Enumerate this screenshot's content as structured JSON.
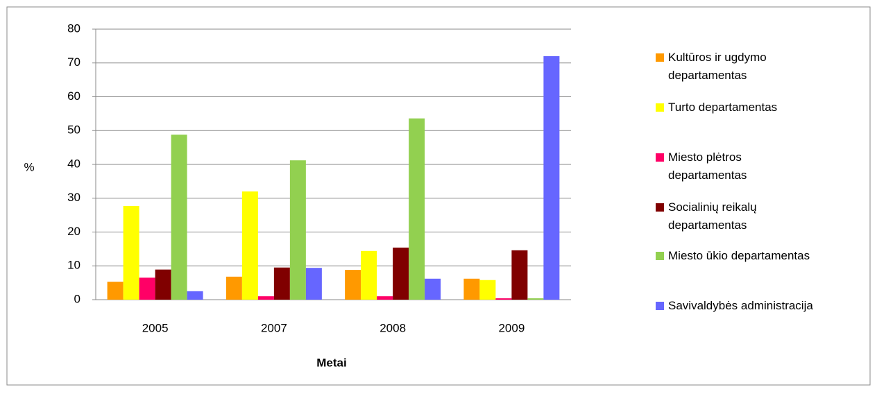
{
  "chart_data": {
    "type": "bar",
    "x_label": "Metai",
    "y_label": "%",
    "categories": [
      "2005",
      "2007",
      "2008",
      "2009"
    ],
    "series": [
      {
        "name": "Kultūros ir ugdymo departamentas",
        "color": "#ff9900",
        "values": [
          5.3,
          6.8,
          8.8,
          6.2
        ]
      },
      {
        "name": "Turto departamentas",
        "color": "#ffff00",
        "values": [
          27.7,
          32,
          14.4,
          5.8
        ]
      },
      {
        "name": "Miesto plėtros departamentas",
        "color": "#ff0066",
        "values": [
          6.5,
          1,
          1,
          0.4
        ]
      },
      {
        "name": "Socialinių reikalų departamentas",
        "color": "#800000",
        "values": [
          8.9,
          9.5,
          15.4,
          14.6
        ]
      },
      {
        "name": "Miesto ūkio departamentas",
        "color": "#92d050",
        "values": [
          48.8,
          41.2,
          53.6,
          0.4
        ]
      },
      {
        "name": "Savivaldybės administracija",
        "color": "#6666ff",
        "values": [
          2.5,
          9.4,
          6.2,
          72
        ]
      }
    ],
    "ylim": [
      0,
      80
    ],
    "yticks": [
      0,
      10,
      20,
      30,
      40,
      50,
      60,
      70,
      80
    ],
    "grid": true,
    "legend": "right"
  }
}
